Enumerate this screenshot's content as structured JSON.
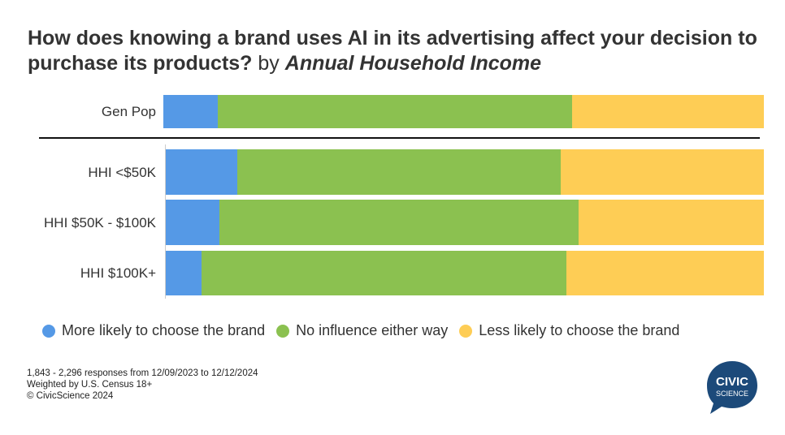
{
  "chart_data": {
    "type": "bar",
    "orientation": "horizontal",
    "stacked": true,
    "normalized": true,
    "title": "How does knowing a brand uses AI in its advertising affect your decision to purchase its products?",
    "title_by": "by",
    "title_dimension": "Annual Household Income",
    "categories": [
      "Gen Pop",
      "HHI <$50K",
      "HHI $50K - $100K",
      "HHI $100K+"
    ],
    "series": [
      {
        "name": "More likely to choose the brand",
        "color": "#5599e6",
        "values": [
          9,
          12,
          9,
          6
        ]
      },
      {
        "name": "No influence either way",
        "color": "#8bc150",
        "values": [
          59,
          54,
          60,
          61
        ]
      },
      {
        "name": "Less likely to choose the brand",
        "color": "#fecd55",
        "values": [
          32,
          34,
          31,
          33
        ]
      }
    ],
    "xlim": [
      0,
      100
    ],
    "legend_position": "bottom",
    "grid": false
  },
  "footer": {
    "line1": "1,843 - 2,296 responses from 12/09/2023 to 12/12/2024",
    "line2": "Weighted by U.S. Census 18+",
    "line3": "© CivicScience 2024"
  },
  "logo": {
    "line1": "CIVIC",
    "line2": "SCIENCE",
    "color": "#1c4a7a"
  }
}
